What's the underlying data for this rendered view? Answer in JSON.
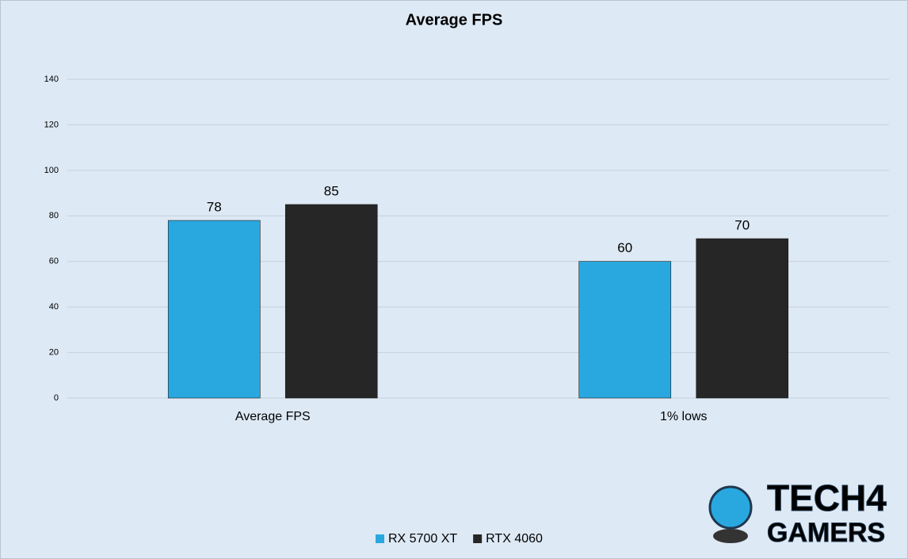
{
  "chart_data": {
    "type": "bar",
    "title": "Average FPS",
    "categories": [
      "Average FPS",
      "1% lows"
    ],
    "series": [
      {
        "name": "RX 5700 XT",
        "color": "#29a8e0",
        "values": [
          78,
          60
        ]
      },
      {
        "name": "RTX 4060",
        "color": "#262626",
        "values": [
          85,
          70
        ]
      }
    ],
    "ylim": [
      0,
      140
    ],
    "yticks": [
      0,
      20,
      40,
      60,
      80,
      100,
      120,
      140
    ],
    "grid": true,
    "legend": "bottom",
    "watermark": [
      "TECH4",
      "GAMERS"
    ]
  }
}
